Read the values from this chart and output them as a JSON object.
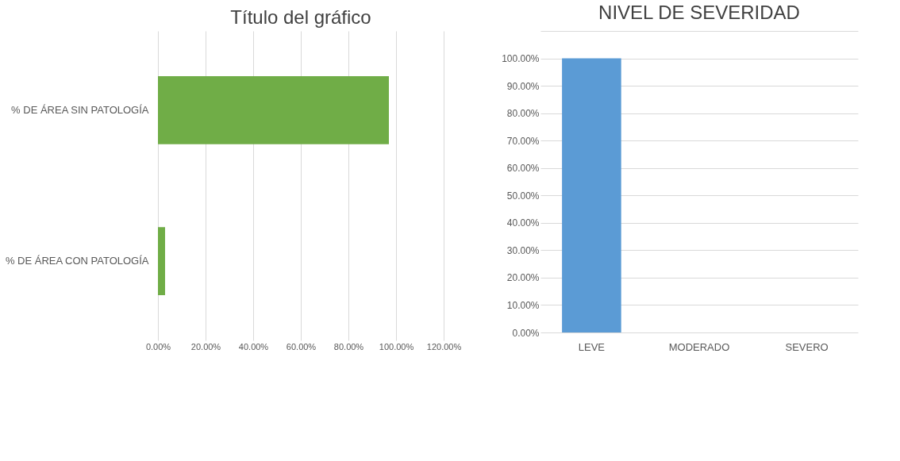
{
  "chart_data": [
    {
      "type": "bar",
      "orientation": "horizontal",
      "title": "Título del gráfico",
      "categories": [
        "% DE ÁREA SIN PATOLOGÍA",
        "% DE ÁREA CON PATOLOGÍA"
      ],
      "values": [
        97,
        3
      ],
      "color": "#70ad47",
      "xlim": [
        0,
        120
      ],
      "xticks": [
        {
          "value": 0,
          "label": "0.00%"
        },
        {
          "value": 20,
          "label": "20.00%"
        },
        {
          "value": 40,
          "label": "40.00%"
        },
        {
          "value": 60,
          "label": "60.00%"
        },
        {
          "value": 80,
          "label": "80.00%"
        },
        {
          "value": 100,
          "label": "100.00%"
        },
        {
          "value": 120,
          "label": "120.00%"
        }
      ],
      "grid": "x"
    },
    {
      "type": "bar",
      "title": "NIVEL DE SEVERIDAD",
      "categories": [
        "LEVE",
        "MODERADO",
        "SEVERO"
      ],
      "values": [
        100,
        0,
        0
      ],
      "color": "#5b9bd5",
      "ylim": [
        0,
        110
      ],
      "yticks": [
        {
          "value": 0,
          "label": "0.00%"
        },
        {
          "value": 10,
          "label": "10.00%"
        },
        {
          "value": 20,
          "label": "20.00%"
        },
        {
          "value": 30,
          "label": "30.00%"
        },
        {
          "value": 40,
          "label": "40.00%"
        },
        {
          "value": 50,
          "label": "50.00%"
        },
        {
          "value": 60,
          "label": "60.00%"
        },
        {
          "value": 70,
          "label": "70.00%"
        },
        {
          "value": 80,
          "label": "80.00%"
        },
        {
          "value": 90,
          "label": "90.00%"
        },
        {
          "value": 100,
          "label": "100.00%"
        },
        {
          "value": 110,
          "label": null
        }
      ],
      "grid": "y"
    }
  ]
}
